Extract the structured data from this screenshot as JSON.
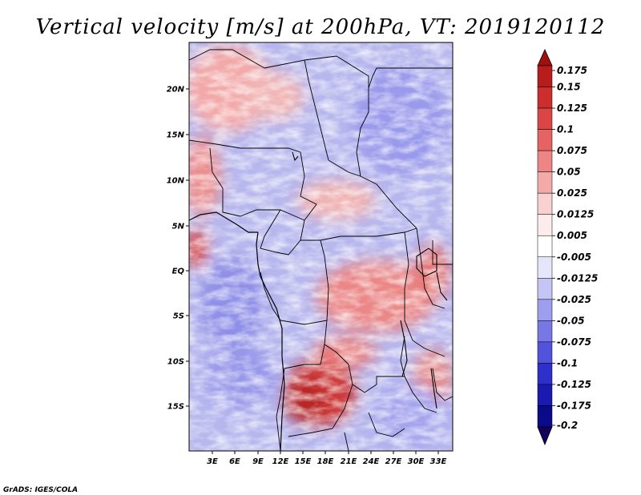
{
  "chart_data": {
    "type": "heatmap",
    "title": "Vertical velocity [m/s] at 200hPa, VT: 2019120112",
    "x_ticks": [
      "3E",
      "6E",
      "9E",
      "12E",
      "15E",
      "18E",
      "21E",
      "24E",
      "27E",
      "30E",
      "33E"
    ],
    "y_ticks": [
      "20N",
      "15N",
      "10N",
      "5N",
      "EQ",
      "5S",
      "10S",
      "15S"
    ],
    "colorbar": {
      "levels": [
        "0.175",
        "0.15",
        "0.125",
        "0.1",
        "0.075",
        "0.05",
        "0.025",
        "0.0125",
        "0.005",
        "-0.005",
        "-0.0125",
        "-0.025",
        "-0.05",
        "-0.075",
        "-0.1",
        "-0.125",
        "-0.175",
        "-0.2"
      ],
      "colors": [
        "#a01010",
        "#b81c1c",
        "#cc2e2e",
        "#dc4545",
        "#e66363",
        "#ee8585",
        "#f5aaaa",
        "#fad1d1",
        "#fdecec",
        "#ffffff",
        "#e6e6fb",
        "#c4c4f5",
        "#9e9ef0",
        "#7777e6",
        "#5252dc",
        "#2f2fcc",
        "#1a1ab0",
        "#0a0a8a",
        "#14005a"
      ]
    },
    "credit": "GrADS: IGES/COLA"
  }
}
